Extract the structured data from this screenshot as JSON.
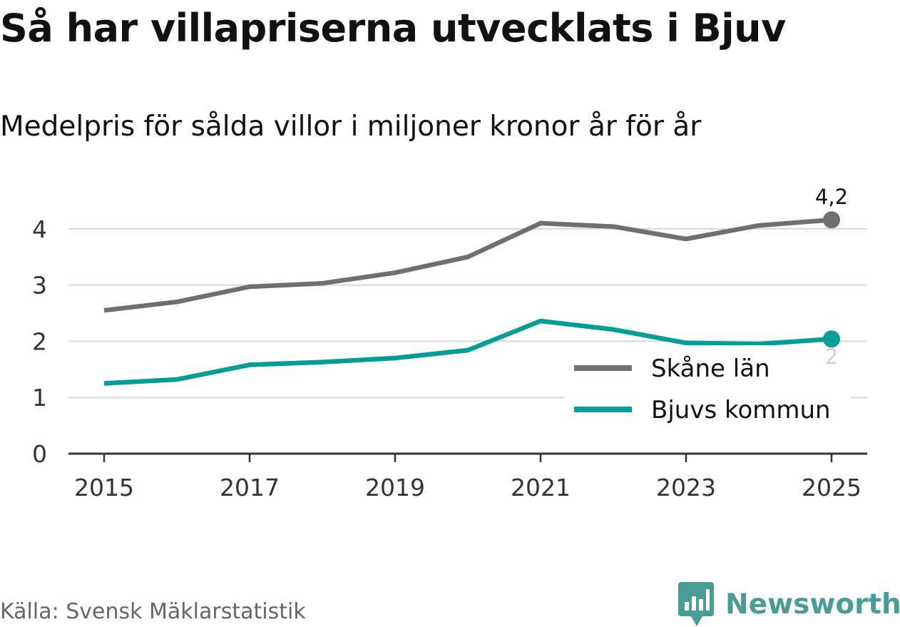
{
  "title": "Så har villapriserna utvecklats i Bjuv",
  "subtitle": "Medelpris för sålda villor i miljoner kronor år för år",
  "source": "Källa: Svensk Mäklarstatistik",
  "brand": {
    "name": "Newsworthy",
    "icon": "bar-chart-icon",
    "color": "#4a9c96"
  },
  "chart_data": {
    "type": "line",
    "x": [
      2015,
      2016,
      2017,
      2018,
      2019,
      2020,
      2021,
      2022,
      2023,
      2024,
      2025
    ],
    "series": [
      {
        "name": "Skåne län",
        "color": "#6f6e73",
        "values": [
          2.55,
          2.7,
          2.97,
          3.03,
          3.22,
          3.5,
          4.1,
          4.04,
          3.82,
          4.06,
          4.16
        ],
        "end_label": "4,2"
      },
      {
        "name": "Bjuvs kommun",
        "color": "#009e96",
        "values": [
          1.25,
          1.32,
          1.58,
          1.63,
          1.7,
          1.84,
          2.36,
          2.21,
          1.97,
          1.95,
          2.04
        ],
        "end_label": "2"
      }
    ],
    "yticks": [
      "0",
      "1",
      "2",
      "3",
      "4"
    ],
    "xticks": [
      "2015",
      "2017",
      "2019",
      "2021",
      "2023",
      "2025"
    ],
    "ylim": [
      0,
      4.2
    ],
    "grid": true,
    "legend": "bottom-right"
  }
}
